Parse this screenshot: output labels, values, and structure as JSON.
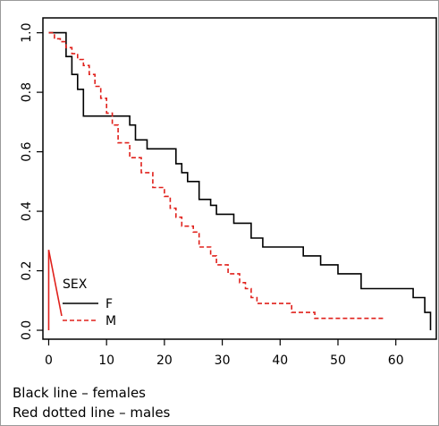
{
  "chart_data": {
    "type": "line",
    "x_ticks": [
      "0",
      "10",
      "20",
      "30",
      "40",
      "50",
      "60"
    ],
    "y_ticks": [
      "0.0",
      "0.2",
      "0.4",
      "0.6",
      "0.8",
      "1.0"
    ],
    "xlim": [
      -1,
      67
    ],
    "ylim": [
      -0.03,
      1.05
    ],
    "legend": {
      "title": "SEX",
      "placement": "bottom-left",
      "entries": [
        {
          "label": "F",
          "color": "#000000",
          "dash": "solid"
        },
        {
          "label": "M",
          "color": "#e0201b",
          "dash": "dashed"
        }
      ]
    },
    "series": [
      {
        "label": "F",
        "color": "#000000",
        "dash": "solid",
        "x": [
          0,
          3,
          3,
          4,
          4,
          5,
          5,
          6,
          6,
          14,
          14,
          15,
          15,
          17,
          17,
          22,
          22,
          23,
          23,
          24,
          24,
          26,
          26,
          28,
          28,
          29,
          29,
          32,
          32,
          35,
          35,
          37,
          37,
          44,
          44,
          47,
          47,
          50,
          50,
          54,
          54,
          63,
          63,
          65,
          65,
          66,
          66
        ],
        "y": [
          1.0,
          1.0,
          0.92,
          0.92,
          0.86,
          0.86,
          0.81,
          0.81,
          0.72,
          0.72,
          0.69,
          0.69,
          0.64,
          0.64,
          0.61,
          0.61,
          0.56,
          0.56,
          0.53,
          0.53,
          0.5,
          0.5,
          0.44,
          0.44,
          0.42,
          0.42,
          0.39,
          0.39,
          0.36,
          0.36,
          0.31,
          0.31,
          0.28,
          0.28,
          0.25,
          0.25,
          0.22,
          0.22,
          0.19,
          0.19,
          0.14,
          0.14,
          0.11,
          0.11,
          0.06,
          0.06,
          0.0
        ]
      },
      {
        "label": "M",
        "color": "#e0201b",
        "dash": "dashed",
        "x": [
          0,
          1,
          1,
          2,
          2,
          3,
          3,
          4,
          4,
          5,
          5,
          6,
          6,
          7,
          7,
          8,
          8,
          9,
          9,
          10,
          10,
          11,
          11,
          12,
          12,
          14,
          14,
          16,
          16,
          18,
          18,
          20,
          20,
          21,
          21,
          22,
          22,
          23,
          23,
          25,
          25,
          26,
          26,
          28,
          28,
          29,
          29,
          31,
          31,
          33,
          33,
          34,
          34,
          35,
          35,
          36,
          36,
          42,
          42,
          46,
          46,
          58,
          58
        ],
        "y": [
          1.0,
          1.0,
          0.98,
          0.98,
          0.97,
          0.97,
          0.95,
          0.95,
          0.93,
          0.93,
          0.91,
          0.91,
          0.89,
          0.89,
          0.86,
          0.86,
          0.82,
          0.82,
          0.78,
          0.78,
          0.73,
          0.73,
          0.69,
          0.69,
          0.63,
          0.63,
          0.58,
          0.58,
          0.53,
          0.53,
          0.48,
          0.48,
          0.45,
          0.45,
          0.41,
          0.41,
          0.38,
          0.38,
          0.35,
          0.35,
          0.33,
          0.33,
          0.28,
          0.28,
          0.25,
          0.25,
          0.22,
          0.22,
          0.19,
          0.19,
          0.16,
          0.16,
          0.14,
          0.14,
          0.11,
          0.11,
          0.09,
          0.09,
          0.06,
          0.06,
          0.04,
          0.04,
          0.04
        ]
      }
    ]
  },
  "caption": {
    "line1": "Black line – females",
    "line2": "Red dotted line – males"
  }
}
